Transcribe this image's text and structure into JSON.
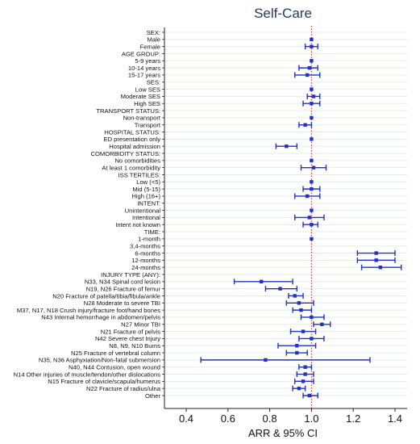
{
  "chart_data": {
    "type": "forest",
    "title": "Self-Care",
    "xlabel": "ARR & 95% CI",
    "ylabel": "",
    "xlim": [
      0.35,
      1.46
    ],
    "xticks": [
      "0.4",
      "0.6",
      "0.8",
      "1.0",
      "1.2",
      "1.4"
    ],
    "reference_line": 1.0,
    "grid": "horizontal",
    "colors": {
      "point": "#1f33c4",
      "ci": "#1f33c4",
      "reference": "#e0202a",
      "grid": "#e3ede3",
      "title": "#1f3a5f"
    },
    "rows": [
      {
        "label": "SEX:",
        "est": null,
        "lo": null,
        "hi": null
      },
      {
        "label": "Male",
        "est": 1.0,
        "lo": null,
        "hi": null
      },
      {
        "label": "Female",
        "est": 1.0,
        "lo": 0.97,
        "hi": 1.03
      },
      {
        "label": "AGE GROUP:",
        "est": null,
        "lo": null,
        "hi": null
      },
      {
        "label": "5-9 years",
        "est": 1.0,
        "lo": null,
        "hi": null
      },
      {
        "label": "10-14 years",
        "est": 0.99,
        "lo": 0.94,
        "hi": 1.03
      },
      {
        "label": "15-17 years",
        "est": 0.98,
        "lo": 0.92,
        "hi": 1.04
      },
      {
        "label": "SES:",
        "est": null,
        "lo": null,
        "hi": null
      },
      {
        "label": "Low SES",
        "est": 1.0,
        "lo": null,
        "hi": null
      },
      {
        "label": "Moderate SES",
        "est": 1.01,
        "lo": 0.98,
        "hi": 1.04
      },
      {
        "label": "High SES",
        "est": 1.0,
        "lo": 0.96,
        "hi": 1.04
      },
      {
        "label": "TRANSPORT STATUS:",
        "est": null,
        "lo": null,
        "hi": null
      },
      {
        "label": "Non-transport",
        "est": 1.0,
        "lo": null,
        "hi": null
      },
      {
        "label": "Transport",
        "est": 0.97,
        "lo": 0.94,
        "hi": 1.0
      },
      {
        "label": "HOSPITAL STATUS:",
        "est": null,
        "lo": null,
        "hi": null
      },
      {
        "label": "ED presentation only",
        "est": 1.0,
        "lo": null,
        "hi": null
      },
      {
        "label": "Hospital admission",
        "est": 0.88,
        "lo": 0.83,
        "hi": 0.93
      },
      {
        "label": "COMORBIDITY STATUS:",
        "est": null,
        "lo": null,
        "hi": null
      },
      {
        "label": "No comorbidities",
        "est": 1.0,
        "lo": null,
        "hi": null
      },
      {
        "label": "At least 1 comorbidity",
        "est": 1.01,
        "lo": 0.95,
        "hi": 1.07
      },
      {
        "label": "ISS TERTILES:",
        "est": null,
        "lo": null,
        "hi": null
      },
      {
        "label": "Low (<5)",
        "est": 1.0,
        "lo": null,
        "hi": null
      },
      {
        "label": "Mid (5-15)",
        "est": 1.0,
        "lo": 0.96,
        "hi": 1.04
      },
      {
        "label": "High (16+)",
        "est": 0.98,
        "lo": 0.92,
        "hi": 1.04
      },
      {
        "label": "INTENT:",
        "est": null,
        "lo": null,
        "hi": null
      },
      {
        "label": "Unintentional",
        "est": 1.0,
        "lo": null,
        "hi": null
      },
      {
        "label": "Intentional",
        "est": 0.99,
        "lo": 0.92,
        "hi": 1.06
      },
      {
        "label": "Intent not known",
        "est": 1.0,
        "lo": 0.96,
        "hi": 1.03
      },
      {
        "label": "TIME:",
        "est": null,
        "lo": null,
        "hi": null
      },
      {
        "label": "1-month",
        "est": 1.0,
        "lo": null,
        "hi": null
      },
      {
        "label": "3,4-months",
        "est": null,
        "lo": null,
        "hi": null
      },
      {
        "label": "6-months",
        "est": 1.31,
        "lo": 1.22,
        "hi": 1.4
      },
      {
        "label": "12-months",
        "est": 1.31,
        "lo": 1.22,
        "hi": 1.4
      },
      {
        "label": "24-months",
        "est": 1.33,
        "lo": 1.24,
        "hi": 1.43
      },
      {
        "label": "INJURY TYPE (ANY):",
        "est": null,
        "lo": null,
        "hi": null
      },
      {
        "label": "N33, N34 Spinal cord lesion",
        "est": 0.76,
        "lo": 0.63,
        "hi": 0.91
      },
      {
        "label": "N19, N26 Fracture of femur",
        "est": 0.85,
        "lo": 0.78,
        "hi": 0.93
      },
      {
        "label": "N20 Fracture of patella/tibia/fibula/ankle",
        "est": 0.92,
        "lo": 0.89,
        "hi": 0.96
      },
      {
        "label": "N28 Moderate to severe TBI",
        "est": 0.94,
        "lo": 0.88,
        "hi": 1.01
      },
      {
        "label": "M37, N17, N18 Crush injury/fracture foot/hand bones",
        "est": 0.95,
        "lo": 0.91,
        "hi": 1.0
      },
      {
        "label": "N43 Internal hemorrhage in abdomen/pelvis",
        "est": 1.0,
        "lo": 0.95,
        "hi": 1.06
      },
      {
        "label": "N27 Minor TBI",
        "est": 1.05,
        "lo": 1.01,
        "hi": 1.09
      },
      {
        "label": "N21 Fracture of pelvis",
        "est": 0.96,
        "lo": 0.9,
        "hi": 1.02
      },
      {
        "label": "N42 Severe chest Injury",
        "est": 1.0,
        "lo": 0.94,
        "hi": 1.06
      },
      {
        "label": "N8, N9, N10 Burns",
        "est": 0.93,
        "lo": 0.84,
        "hi": 1.02
      },
      {
        "label": "N25 Fracture of vertebral column",
        "est": 0.93,
        "lo": 0.88,
        "hi": 0.98
      },
      {
        "label": "N35, N36 Asphyxiation/Non-fatal submersion",
        "est": 0.78,
        "lo": 0.47,
        "hi": 1.28
      },
      {
        "label": "N40, N44 Contusion, open wound",
        "est": 0.97,
        "lo": 0.94,
        "hi": 1.0
      },
      {
        "label": "N14 Other injuries of muscle/tendon/other dislocations",
        "est": 0.97,
        "lo": 0.93,
        "hi": 1.01
      },
      {
        "label": "N15 Fracture of clavicle/scapula/humerus",
        "est": 0.96,
        "lo": 0.92,
        "hi": 1.01
      },
      {
        "label": "N22 Fracture of radius/ulna",
        "est": 0.94,
        "lo": 0.91,
        "hi": 0.97
      },
      {
        "label": "Other",
        "est": 0.99,
        "lo": 0.96,
        "hi": 1.03
      }
    ]
  }
}
